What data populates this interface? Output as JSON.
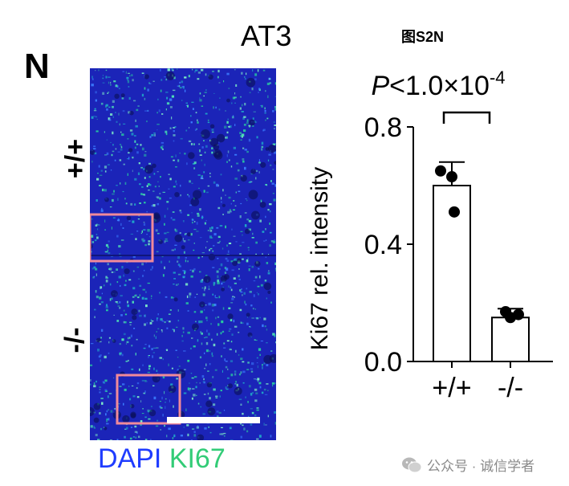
{
  "panel_label": "N",
  "cell_line": "AT3",
  "figure_tag": "图S2N",
  "micrograph": {
    "genotype_top": "+/+",
    "genotype_bottom": "-/-",
    "stain_dapi": "DAPI",
    "stain_ki67": "KI67",
    "colors": {
      "dapi": "#1f3cff",
      "ki67": "#33cc77",
      "roi_box": "#f08a9a",
      "scale_bar": "#ffffff"
    }
  },
  "chart_data": {
    "type": "bar",
    "categories": [
      "+/+",
      "-/-"
    ],
    "values": [
      0.6,
      0.15
    ],
    "error": [
      0.08,
      0.03
    ],
    "points": [
      [
        0.65,
        0.63,
        0.51
      ],
      [
        0.17,
        0.16,
        0.15
      ]
    ],
    "ylabel": "Ki67 rel. intensity",
    "ylim": [
      0,
      0.8
    ],
    "yticks": [
      0.0,
      0.4,
      0.8
    ],
    "ytick_labels": [
      "0.0",
      "0.4",
      "0.8"
    ],
    "annotation": {
      "p_letter": "P",
      "p_text": "<1.0×10",
      "p_exp": "-4"
    },
    "grid": false,
    "bar_fill": "#ffffff",
    "bar_stroke": "#000000"
  },
  "watermark": {
    "icon": "wechat-icon",
    "text": "公众号 · 诚信学者"
  }
}
